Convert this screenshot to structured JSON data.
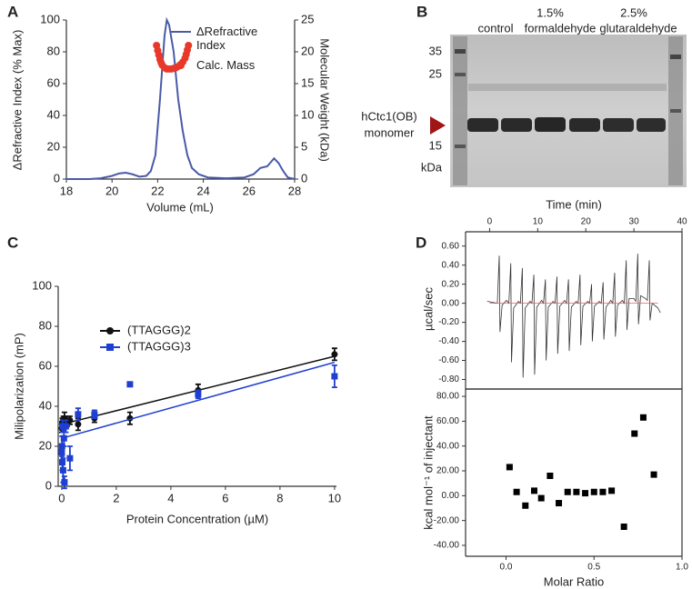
{
  "chart_data": [
    {
      "panel": "A",
      "type": "line",
      "xlabel": "Volume (mL)",
      "ylabel": "ΔRefractive Index (% Max)",
      "y2label": "Molecular Weight (kDa)",
      "xlim": [
        18,
        28
      ],
      "xticks": [
        18,
        20,
        22,
        24,
        26,
        28
      ],
      "ylim": [
        0,
        100
      ],
      "yticks": [
        0,
        20,
        40,
        60,
        80,
        100
      ],
      "y2lim": [
        0,
        25
      ],
      "y2ticks": [
        0,
        5,
        10,
        15,
        20,
        25
      ],
      "legend": "upper right",
      "series": [
        {
          "name": "ΔRefractive Index",
          "type": "line",
          "color": "#4a5aa8",
          "x": [
            18,
            18.5,
            19,
            19.5,
            20,
            20.3,
            20.6,
            20.9,
            21.2,
            21.5,
            21.7,
            21.9,
            22.1,
            22.3,
            22.4,
            22.5,
            22.7,
            22.9,
            23.1,
            23.3,
            23.5,
            23.8,
            24.2,
            25,
            25.8,
            26.2,
            26.5,
            26.8,
            27.1,
            27.3,
            27.5,
            27.7,
            28
          ],
          "values": [
            0,
            0,
            0,
            0.5,
            2,
            3.5,
            4,
            3,
            1.5,
            2,
            5,
            15,
            50,
            90,
            100,
            97,
            80,
            50,
            30,
            15,
            7,
            3,
            1,
            0.5,
            1,
            3,
            7,
            8,
            13,
            10,
            5,
            1,
            0
          ]
        },
        {
          "name": "Calc. Mass",
          "type": "scatter",
          "axis": "y2",
          "color": "#e8382a",
          "x": [
            21.95,
            22.0,
            22.05,
            22.1,
            22.15,
            22.2,
            22.3,
            22.4,
            22.5,
            22.6,
            22.7,
            22.8,
            22.9,
            23.0,
            23.1,
            23.2,
            23.25,
            23.3,
            23.35
          ],
          "values": [
            21,
            20.2,
            19.5,
            18.8,
            18.3,
            17.9,
            17.5,
            17.3,
            17.3,
            17.3,
            17.4,
            17.5,
            17.7,
            18,
            18.4,
            19,
            19.6,
            20.3,
            21
          ]
        }
      ]
    },
    {
      "panel": "C",
      "type": "scatter",
      "xlabel": "Protein Concentration (µM)",
      "ylabel": "Milipolarization (mP)",
      "xlim": [
        -0.13,
        10.07
      ],
      "xticks": [
        0,
        2,
        4,
        6,
        8,
        10
      ],
      "ylim": [
        0,
        100
      ],
      "yticks": [
        0,
        20,
        40,
        60,
        80,
        100
      ],
      "legend": "upper left",
      "series": [
        {
          "name": "(TTAGGG)2",
          "color": "#111111",
          "marker": "circle",
          "x": [
            0,
            0.02,
            0.04,
            0.06,
            0.1,
            0.15,
            0.2,
            0.3,
            0.6,
            1.2,
            2.5,
            5,
            10
          ],
          "values": [
            29,
            32,
            31,
            33,
            34,
            33,
            32,
            33,
            31,
            34,
            34,
            48,
            66
          ],
          "errors": [
            2,
            2,
            2,
            2,
            3,
            2,
            2,
            2,
            3,
            2,
            3,
            3,
            3
          ],
          "fit_x": [
            0,
            10
          ],
          "fit_y": [
            31,
            65
          ]
        },
        {
          "name": "(TTAGGG)3",
          "color": "#1f3fd0",
          "marker": "square",
          "x": [
            0,
            0.01,
            0.02,
            0.03,
            0.05,
            0.08,
            0.1,
            0.15,
            0.3,
            0.6,
            1.2,
            2.5,
            5,
            10
          ],
          "values": [
            17,
            20,
            12,
            30,
            8,
            24,
            2,
            30,
            14,
            36,
            36,
            51,
            46,
            55
          ],
          "errors": [
            4,
            5,
            4,
            3,
            6,
            4,
            3,
            3,
            6,
            3,
            2,
            1,
            2,
            5.5
          ],
          "fit_x": [
            0,
            10
          ],
          "fit_y": [
            24,
            62
          ]
        }
      ]
    },
    {
      "panel": "D",
      "type": "line",
      "xlabel": "Time (min)",
      "ylabel": "µcal/sec",
      "xlim": [
        -5,
        40
      ],
      "xticks": [
        0,
        10,
        20,
        30,
        40
      ],
      "ylim": [
        -0.9,
        0.75
      ],
      "yticks": [
        {
          "value": 0.6,
          "label": "0.60"
        },
        {
          "value": 0.4,
          "label": "0.40"
        },
        {
          "value": 0.2,
          "label": "0.20"
        },
        {
          "value": 0,
          "label": "0.00"
        },
        {
          "value": -0.2,
          "label": "-0.20"
        },
        {
          "value": -0.4,
          "label": "-0.40"
        },
        {
          "value": -0.6,
          "label": "-0.60"
        },
        {
          "value": -0.8,
          "label": "-0.80"
        }
      ],
      "series": [
        {
          "color": "#333333",
          "x": [
            -0.5,
            1.6,
            2.0,
            2.15,
            2.6,
            3.5,
            4.0,
            4.4,
            4.55,
            5.0,
            6.0,
            6.4,
            6.8,
            6.95,
            7.4,
            8.4,
            8.8,
            9.2,
            9.35,
            9.8,
            10.8,
            11.2,
            11.6,
            11.75,
            12.2,
            13.2,
            13.6,
            14.0,
            14.15,
            14.6,
            15.6,
            16.0,
            16.4,
            16.55,
            17.0,
            18.0,
            18.4,
            18.8,
            18.95,
            19.4,
            20.4,
            20.8,
            21.2,
            21.35,
            21.8,
            22.8,
            23.2,
            23.6,
            23.75,
            24.2,
            25.2,
            25.6,
            26.0,
            26.15,
            26.6,
            27.6,
            28.0,
            28.4,
            28.55,
            29.0,
            30.0,
            30.4,
            30.8,
            30.95,
            31.4,
            32.4,
            32.8,
            33.2,
            33.35,
            33.8,
            35.0,
            35.5
          ],
          "values": [
            0.02,
            0.0,
            0.5,
            -0.3,
            -0.02,
            0.03,
            0.0,
            0.42,
            -0.62,
            -0.05,
            0.02,
            0.0,
            0.37,
            -0.78,
            -0.05,
            0.02,
            0.0,
            0.3,
            -0.75,
            -0.04,
            0.03,
            0.0,
            0.25,
            -0.6,
            -0.04,
            0.02,
            0.0,
            0.28,
            -0.53,
            -0.03,
            0.03,
            0.0,
            0.25,
            -0.5,
            -0.04,
            0.02,
            0.0,
            0.3,
            -0.44,
            -0.03,
            0.02,
            0.0,
            0.2,
            -0.4,
            -0.03,
            0.02,
            0.0,
            0.22,
            -0.38,
            -0.04,
            0.03,
            0.0,
            0.32,
            -0.35,
            -0.02,
            0.03,
            0.0,
            0.45,
            -0.28,
            0.05,
            0.05,
            0.02,
            0.52,
            -0.22,
            0.08,
            0.05,
            0.03,
            0.45,
            -0.18,
            0.0,
            -0.05,
            -0.1
          ]
        },
        {
          "color": "#e06060",
          "x": [
            0,
            35
          ],
          "values": [
            0,
            0
          ]
        }
      ]
    },
    {
      "type": "scatter",
      "xlabel": "Molar Ratio",
      "ylabel": "kcal mol⁻¹ of injectant",
      "xlim": [
        -0.23,
        1.0
      ],
      "xticks": [
        {
          "value": 0,
          "label": "0.0"
        },
        {
          "value": 0.5,
          "label": "0.5"
        },
        {
          "value": 1,
          "label": "1.0"
        }
      ],
      "ylim": [
        -48.8,
        85.9
      ],
      "yticks": [
        {
          "value": 80,
          "label": "80.00"
        },
        {
          "value": 60,
          "label": "60.00"
        },
        {
          "value": 40,
          "label": "40.00"
        },
        {
          "value": 20,
          "label": "20.00"
        },
        {
          "value": 0,
          "label": "0.00"
        },
        {
          "value": -20,
          "label": "-20.00"
        },
        {
          "value": -40,
          "label": "-40.00"
        }
      ],
      "series": [
        {
          "color": "#000000",
          "marker": "square",
          "x": [
            0.02,
            0.06,
            0.11,
            0.16,
            0.2,
            0.25,
            0.3,
            0.35,
            0.4,
            0.45,
            0.5,
            0.55,
            0.6,
            0.67,
            0.73,
            0.78,
            0.84
          ],
          "values": [
            23,
            3,
            -8,
            4,
            -2,
            16,
            -6,
            3,
            3,
            2,
            3,
            3,
            4,
            -25,
            50,
            63,
            17
          ]
        }
      ]
    }
  ],
  "gel": {
    "panel": "B",
    "lane_labels": [
      "control",
      "1.5%",
      "formaldehyde",
      "2.5%",
      "glutaraldehyde"
    ],
    "ladder_labels": [
      "35",
      "25",
      "15",
      "kDa"
    ],
    "band_label": [
      "hCtc1(OB)",
      "monomer"
    ]
  }
}
